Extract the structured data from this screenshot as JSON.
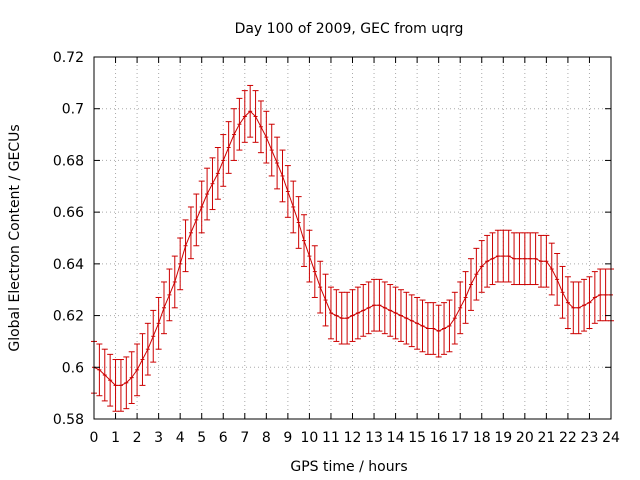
{
  "chart_data": {
    "type": "line",
    "title": "Day 100 of 2009, GEC from uqrg",
    "xlabel": "GPS time / hours",
    "ylabel": "Global Electron Content / GECUs",
    "xlim": [
      0,
      24
    ],
    "ylim": [
      0.58,
      0.72
    ],
    "xticks": [
      "0",
      "1",
      "2",
      "3",
      "4",
      "5",
      "6",
      "7",
      "8",
      "9",
      "10",
      "11",
      "12",
      "13",
      "14",
      "15",
      "16",
      "17",
      "18",
      "19",
      "20",
      "21",
      "22",
      "23",
      "24"
    ],
    "yticks": [
      "0.58",
      "0.6",
      "0.62",
      "0.64",
      "0.66",
      "0.68",
      "0.7",
      "0.72"
    ],
    "grid": true,
    "series_color": "#cc0000",
    "error_bar": 0.01,
    "series": [
      {
        "x": [
          0,
          0.25,
          0.5,
          0.75,
          1,
          1.25,
          1.5,
          1.75,
          2,
          2.25,
          2.5,
          2.75,
          3,
          3.25,
          3.5,
          3.75,
          4,
          4.25,
          4.5,
          4.75,
          5,
          5.25,
          5.5,
          5.75,
          6,
          6.25,
          6.5,
          6.75,
          7,
          7.25,
          7.5,
          7.75,
          8,
          8.25,
          8.5,
          8.75,
          9,
          9.25,
          9.5,
          9.75,
          10,
          10.25,
          10.5,
          10.75,
          11,
          11.25,
          11.5,
          11.75,
          12,
          12.25,
          12.5,
          12.75,
          13,
          13.25,
          13.5,
          13.75,
          14,
          14.25,
          14.5,
          14.75,
          15,
          15.25,
          15.5,
          15.75,
          16,
          16.25,
          16.5,
          16.75,
          17,
          17.25,
          17.5,
          17.75,
          18,
          18.25,
          18.5,
          18.75,
          19,
          19.25,
          19.5,
          19.75,
          20,
          20.25,
          20.5,
          20.75,
          21,
          21.25,
          21.5,
          21.75,
          22,
          22.25,
          22.5,
          22.75,
          23,
          23.25,
          23.5,
          23.75,
          24
        ],
        "y": [
          0.6,
          0.599,
          0.597,
          0.595,
          0.593,
          0.593,
          0.594,
          0.596,
          0.599,
          0.603,
          0.607,
          0.612,
          0.617,
          0.623,
          0.628,
          0.633,
          0.64,
          0.647,
          0.652,
          0.657,
          0.662,
          0.667,
          0.671,
          0.675,
          0.68,
          0.685,
          0.69,
          0.694,
          0.697,
          0.699,
          0.697,
          0.693,
          0.689,
          0.684,
          0.679,
          0.674,
          0.668,
          0.662,
          0.656,
          0.649,
          0.643,
          0.637,
          0.631,
          0.626,
          0.621,
          0.62,
          0.619,
          0.619,
          0.62,
          0.621,
          0.622,
          0.623,
          0.624,
          0.624,
          0.623,
          0.622,
          0.621,
          0.62,
          0.619,
          0.618,
          0.617,
          0.616,
          0.615,
          0.615,
          0.614,
          0.615,
          0.616,
          0.619,
          0.623,
          0.627,
          0.632,
          0.636,
          0.639,
          0.641,
          0.642,
          0.643,
          0.643,
          0.643,
          0.642,
          0.642,
          0.642,
          0.642,
          0.642,
          0.641,
          0.641,
          0.638,
          0.634,
          0.629,
          0.625,
          0.623,
          0.623,
          0.624,
          0.625,
          0.627,
          0.628,
          0.628,
          0.628
        ]
      }
    ]
  }
}
